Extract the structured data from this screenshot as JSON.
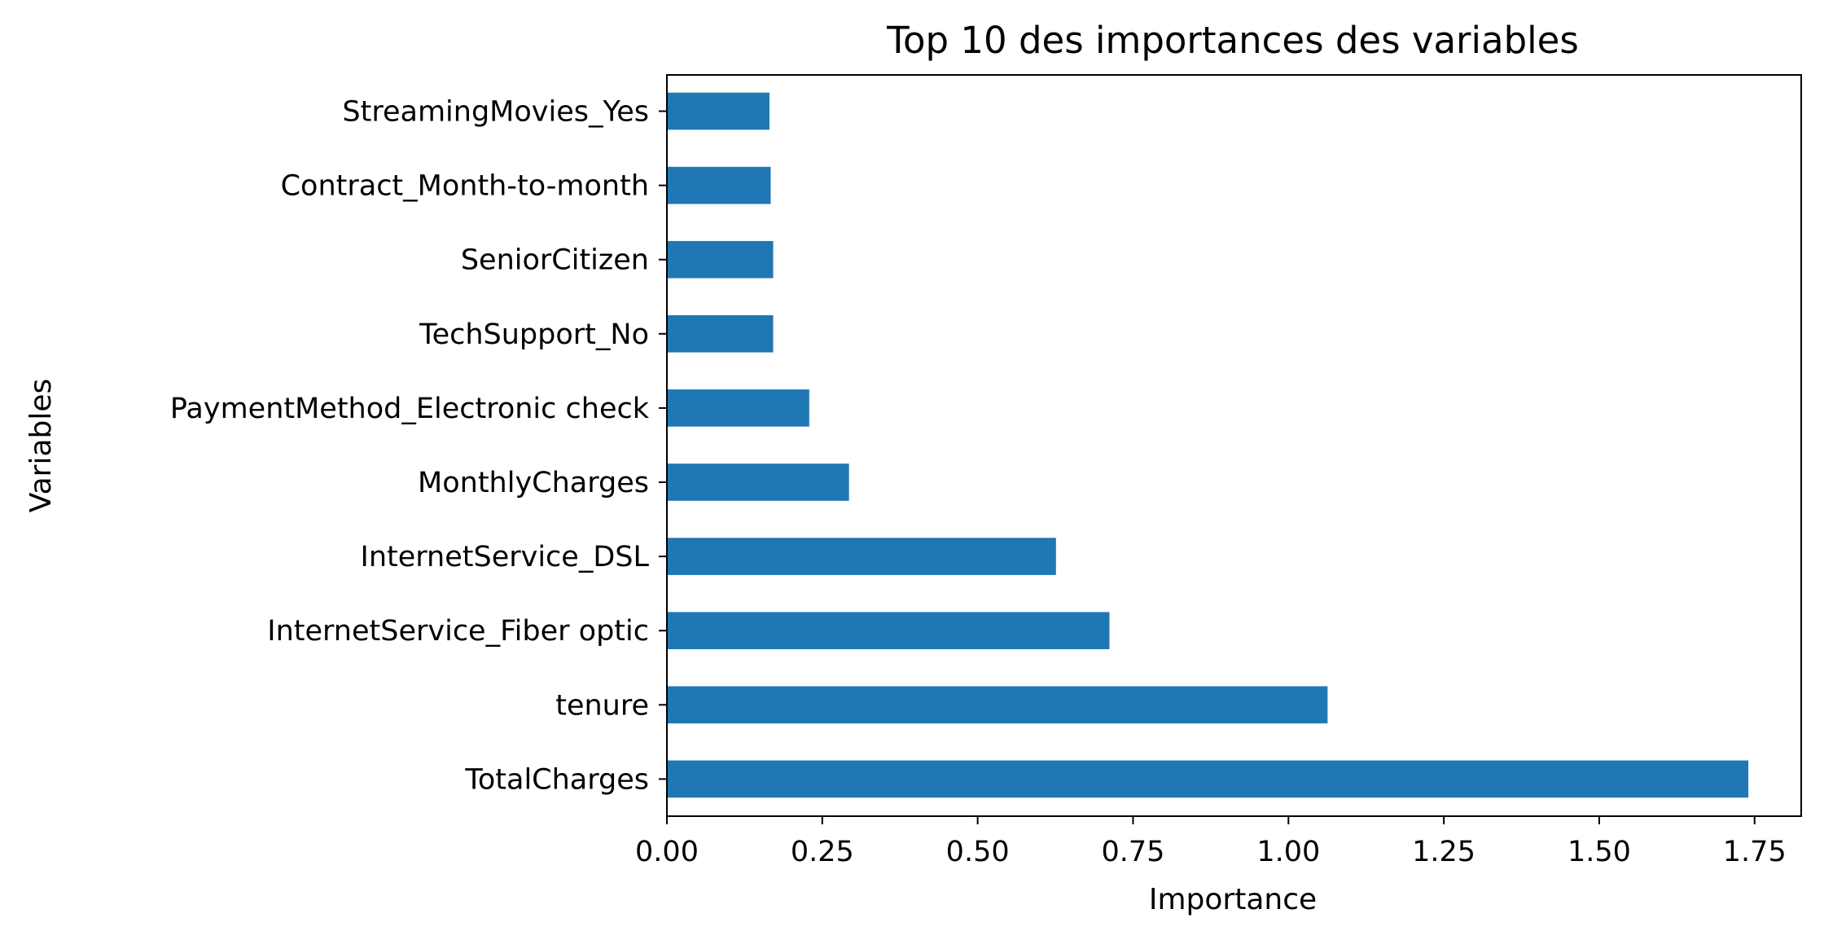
{
  "chart_data": {
    "type": "bar",
    "orientation": "horizontal",
    "title": "Top 10 des importances des variables",
    "xlabel": "Importance",
    "ylabel": "Variables",
    "categories": [
      "TotalCharges",
      "tenure",
      "InternetService_Fiber optic",
      "InternetService_DSL",
      "MonthlyCharges",
      "PaymentMethod_Electronic check",
      "TechSupport_No",
      "SeniorCitizen",
      "Contract_Month-to-month",
      "StreamingMovies_Yes"
    ],
    "values": [
      1.74,
      1.063,
      0.712,
      0.626,
      0.293,
      0.229,
      0.171,
      0.171,
      0.167,
      0.165
    ],
    "xlim": [
      0,
      1.825
    ],
    "xticks": [
      0.0,
      0.25,
      0.5,
      0.75,
      1.0,
      1.25,
      1.5,
      1.75
    ],
    "xtick_labels": [
      "0.00",
      "0.25",
      "0.50",
      "0.75",
      "1.00",
      "1.25",
      "1.50",
      "1.75"
    ],
    "bar_color": "#1f77b4",
    "grid": false,
    "legend": "none"
  }
}
